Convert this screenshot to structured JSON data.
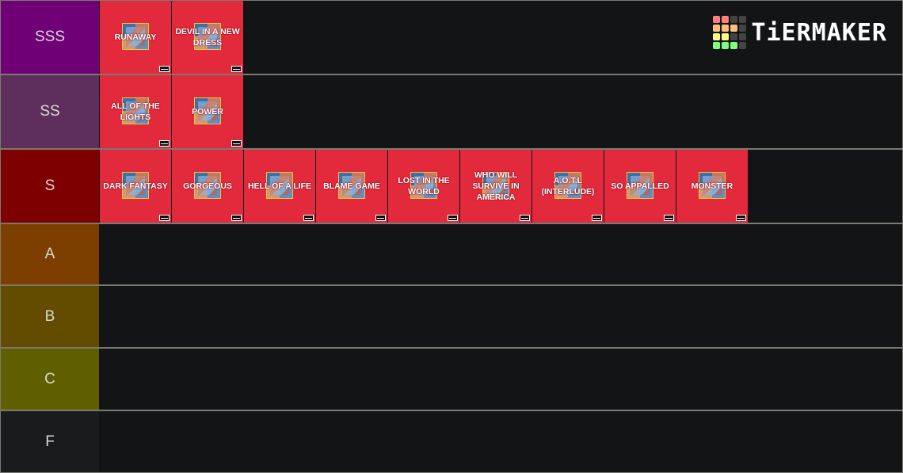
{
  "brand": {
    "name": "TiERMAKER",
    "logo_colors": [
      [
        "#ff7f7f",
        "#ff7f7f",
        "#444444",
        "#444444"
      ],
      [
        "#ffbf7f",
        "#ffbf7f",
        "#ffbf7f",
        "#444444"
      ],
      [
        "#ffff7f",
        "#ffff7f",
        "#444444",
        "#444444"
      ],
      [
        "#7fff7f",
        "#7fff7f",
        "#7fff7f",
        "#444444"
      ]
    ]
  },
  "tiers": [
    {
      "label": "SSS",
      "color": "#6f0076",
      "items": [
        "RUNAWAY",
        "DEVIL IN A NEW DRESS"
      ]
    },
    {
      "label": "SS",
      "color": "#5e2f5c",
      "items": [
        "ALL OF THE LIGHTS",
        "POWER"
      ]
    },
    {
      "label": "S",
      "color": "#7e0000",
      "items": [
        "DARK FANTASY",
        "GORGEOUS",
        "HELL OF A LIFE",
        "BLAME GAME",
        "LOST IN THE WORLD",
        "WHO WILL SURVIVE IN AMERICA",
        "A.O.T.L (INTERLUDE)",
        "SO APPALLED",
        "MONSTER"
      ]
    },
    {
      "label": "A",
      "color": "#7c3f00",
      "items": []
    },
    {
      "label": "B",
      "color": "#634c00",
      "items": []
    },
    {
      "label": "C",
      "color": "#605f00",
      "items": []
    },
    {
      "label": "F",
      "color": "#1a1b1d",
      "items": []
    }
  ]
}
